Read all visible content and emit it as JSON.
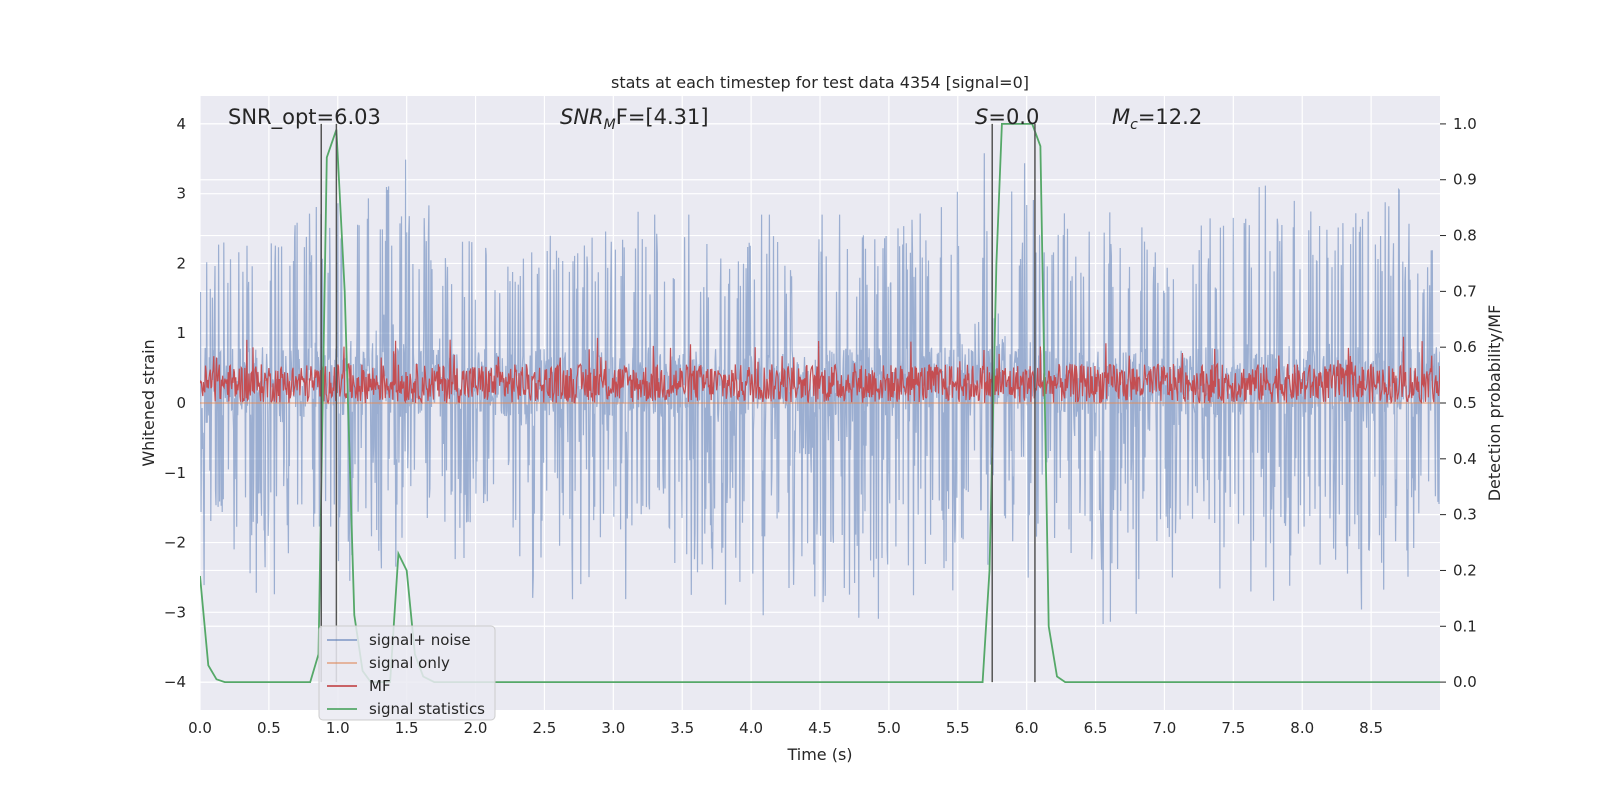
{
  "chart_data": {
    "type": "line",
    "title": "stats at each timestep for test data 4354 [signal=0]",
    "xlabel": "Time (s)",
    "ylabel_left": "Whitened strain",
    "ylabel_right": "Detection probability/MF",
    "xlim": [
      0.0,
      9.0
    ],
    "ylim_left": [
      -4.4,
      4.4
    ],
    "ylim_right": [
      -0.05,
      1.05
    ],
    "x_ticks": [
      0.0,
      0.5,
      1.0,
      1.5,
      2.0,
      2.5,
      3.0,
      3.5,
      4.0,
      4.5,
      5.0,
      5.5,
      6.0,
      6.5,
      7.0,
      7.5,
      8.0,
      8.5
    ],
    "x_tick_labels": [
      "0.0",
      "0.5",
      "1.0",
      "1.5",
      "2.0",
      "2.5",
      "3.0",
      "3.5",
      "4.0",
      "4.5",
      "5.0",
      "5.5",
      "6.0",
      "6.5",
      "7.0",
      "7.5",
      "8.0",
      "8.5"
    ],
    "y_left_ticks": [
      -4,
      -3,
      -2,
      -1,
      0,
      1,
      2,
      3,
      4
    ],
    "y_left_tick_labels": [
      "−4",
      "−3",
      "−2",
      "−1",
      "0",
      "1",
      "2",
      "3",
      "4"
    ],
    "y_right_ticks": [
      0.0,
      0.1,
      0.2,
      0.3,
      0.4,
      0.5,
      0.6,
      0.7,
      0.8,
      0.9,
      1.0
    ],
    "y_right_tick_labels": [
      "0.0",
      "0.1",
      "0.2",
      "0.3",
      "0.4",
      "0.5",
      "0.6",
      "0.7",
      "0.8",
      "0.9",
      "1.0"
    ],
    "annotations": {
      "snr_opt": "SNR_opt=6.03",
      "snr_mf_prefix": "SNR",
      "snr_mf_sub": "M",
      "snr_mf_suffix": "F=[4.31]",
      "s_label": "S",
      "s_value": "=0.0",
      "mc_label": "M",
      "mc_sub": "c",
      "mc_value": "=12.2"
    },
    "vertical_lines_x": [
      0.88,
      0.99,
      5.75,
      6.06
    ],
    "legend": {
      "location": "lower left",
      "entries": [
        "signal+ noise",
        "signal only",
        "MF",
        "signal statistics"
      ]
    },
    "colors": {
      "background": "#eaeaf2",
      "grid": "#ffffff",
      "noise": "#4c72b0",
      "signal": "#dd8452",
      "mf": "#c44e52",
      "stat": "#55a868",
      "vline": "#555555"
    },
    "series": [
      {
        "name": "signal+ noise",
        "axis": "left",
        "description_range": "dense noise, envelope roughly -2 to +2.5, peaks to +4 and -3.5",
        "envelope_points": {
          "x": [
            0.0,
            0.3,
            0.9,
            1.2,
            2.0,
            2.7,
            3.3,
            4.9,
            5.8,
            6.5,
            7.5,
            8.5,
            9.0
          ],
          "max": [
            2.4,
            2.7,
            3.2,
            4.0,
            2.6,
            2.9,
            2.7,
            2.7,
            3.7,
            2.7,
            3.0,
            3.5,
            2.4
          ],
          "min": [
            -2.6,
            -2.7,
            -2.8,
            -2.4,
            -2.2,
            -3.2,
            -2.6,
            -3.5,
            -2.2,
            -3.2,
            -2.6,
            -3.4,
            -1.7
          ]
        }
      },
      {
        "name": "signal only",
        "axis": "left",
        "x": [
          0.0,
          9.0
        ],
        "y": [
          0.0,
          0.0
        ]
      },
      {
        "name": "MF",
        "axis": "right",
        "description_range": "noisy band between about 0.50 and 0.60, peaks near 0.62",
        "band": {
          "min": 0.5,
          "typical_max": 0.57,
          "peak": 0.62
        }
      },
      {
        "name": "signal statistics",
        "axis": "right",
        "x": [
          0.0,
          0.06,
          0.12,
          0.18,
          0.8,
          0.86,
          0.92,
          0.99,
          1.05,
          1.12,
          1.18,
          1.24,
          1.38,
          1.44,
          1.5,
          1.56,
          1.62,
          1.7,
          5.68,
          5.73,
          5.78,
          5.82,
          6.04,
          6.1,
          6.16,
          6.22,
          6.28,
          9.0
        ],
        "y": [
          0.19,
          0.03,
          0.005,
          0.0,
          0.0,
          0.05,
          0.94,
          0.99,
          0.7,
          0.12,
          0.02,
          0.0,
          0.0,
          0.23,
          0.2,
          0.05,
          0.01,
          0.0,
          0.0,
          0.2,
          0.75,
          1.0,
          1.0,
          0.96,
          0.1,
          0.01,
          0.0,
          0.0
        ]
      }
    ]
  }
}
